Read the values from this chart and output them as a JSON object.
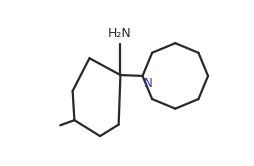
{
  "background_color": "#ffffff",
  "bond_color": "#2a2a2a",
  "text_color": "#2a2a2a",
  "N_color": "#3333bb",
  "figsize": [
    2.55,
    1.66
  ],
  "dpi": 100,
  "lw": 1.6
}
